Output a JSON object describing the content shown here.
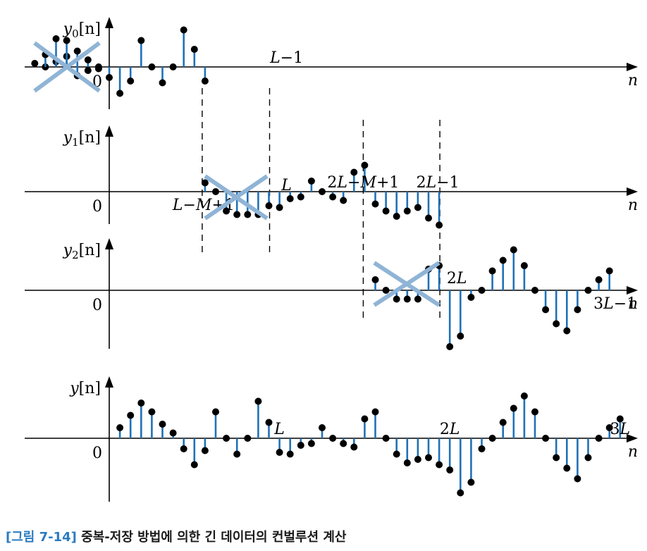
{
  "figure": {
    "caption_tag": "[그림 7-14]",
    "caption_text": "중복-저장 방법에 의한 긴 데이터의 컨벌루션 계산"
  },
  "panels": [
    {
      "name": "y0",
      "ylabel_base": "y",
      "ylabel_sub": "0",
      "ylabel_arg": "[n]",
      "origin_label": "0",
      "xlabel": "n",
      "values": [
        0.1,
        0.35,
        0.8,
        0.75,
        0.45,
        0.2,
        -0.05,
        -0.3,
        -0.75,
        -0.4,
        0.75,
        0,
        -0.45,
        0,
        1.05,
        0.5,
        -0.4
      ],
      "discarded_first_values": [
        0,
        0.15,
        0.3,
        -0.25,
        -0.1,
        0
      ],
      "labels": [
        {
          "text": "L−1"
        }
      ]
    },
    {
      "name": "y1",
      "ylabel_base": "y",
      "ylabel_sub": "1",
      "ylabel_arg": "[n]",
      "origin_label": "0",
      "xlabel": "n",
      "values": [
        0.25,
        0,
        -0.55,
        -0.65,
        -0.65,
        -0.65,
        -0.4,
        -0.45,
        -0.2,
        -0.15,
        0.3,
        0,
        -0.15,
        -0.25,
        0.55,
        0.75,
        -0.35,
        -0.55,
        -0.7,
        -0.55,
        -0.45,
        -0.75,
        -0.95
      ],
      "discarded_first": 7,
      "labels": [
        {
          "text": "L−M+1"
        },
        {
          "text": "L"
        },
        {
          "text": "2L−M+1"
        },
        {
          "text": "2L−1"
        }
      ]
    },
    {
      "name": "y2",
      "ylabel_base": "y",
      "ylabel_sub": "2",
      "ylabel_arg": "[n]",
      "origin_label": "0",
      "xlabel": "n",
      "values": [
        0.3,
        0,
        -0.25,
        -0.25,
        -0.25,
        0.6,
        0.7,
        -1.6,
        -1.3,
        -0.2,
        0,
        0.55,
        0.85,
        1.15,
        0.7,
        0,
        -0.55,
        -0.95,
        -1.15,
        -0.55,
        0,
        0.3,
        0.55
      ],
      "discarded_first": 6,
      "labels": [
        {
          "text": "2L"
        },
        {
          "text": "3L−1"
        }
      ]
    },
    {
      "name": "y",
      "ylabel_base": "y",
      "ylabel_sub": "",
      "ylabel_arg": "[n]",
      "origin_label": "0",
      "xlabel": "n",
      "values": [
        0.3,
        0.65,
        1.0,
        0.75,
        0.4,
        0.15,
        -0.3,
        -0.75,
        -0.35,
        0.75,
        0,
        -0.45,
        0,
        1.05,
        0.45,
        -0.4,
        -0.45,
        -0.2,
        -0.15,
        0.3,
        0,
        -0.15,
        -0.25,
        0.55,
        0.75,
        0,
        -0.45,
        -0.7,
        -0.6,
        -0.55,
        -0.75,
        -0.9,
        -1.55,
        -1.25,
        -0.3,
        0,
        0.45,
        0.85,
        1.2,
        0.75,
        0,
        -0.55,
        -0.85,
        -1.15,
        -0.55,
        0,
        0.3,
        0.55
      ],
      "labels": [
        {
          "text": "L"
        },
        {
          "text": "2L"
        },
        {
          "text": "3L"
        }
      ]
    }
  ]
}
